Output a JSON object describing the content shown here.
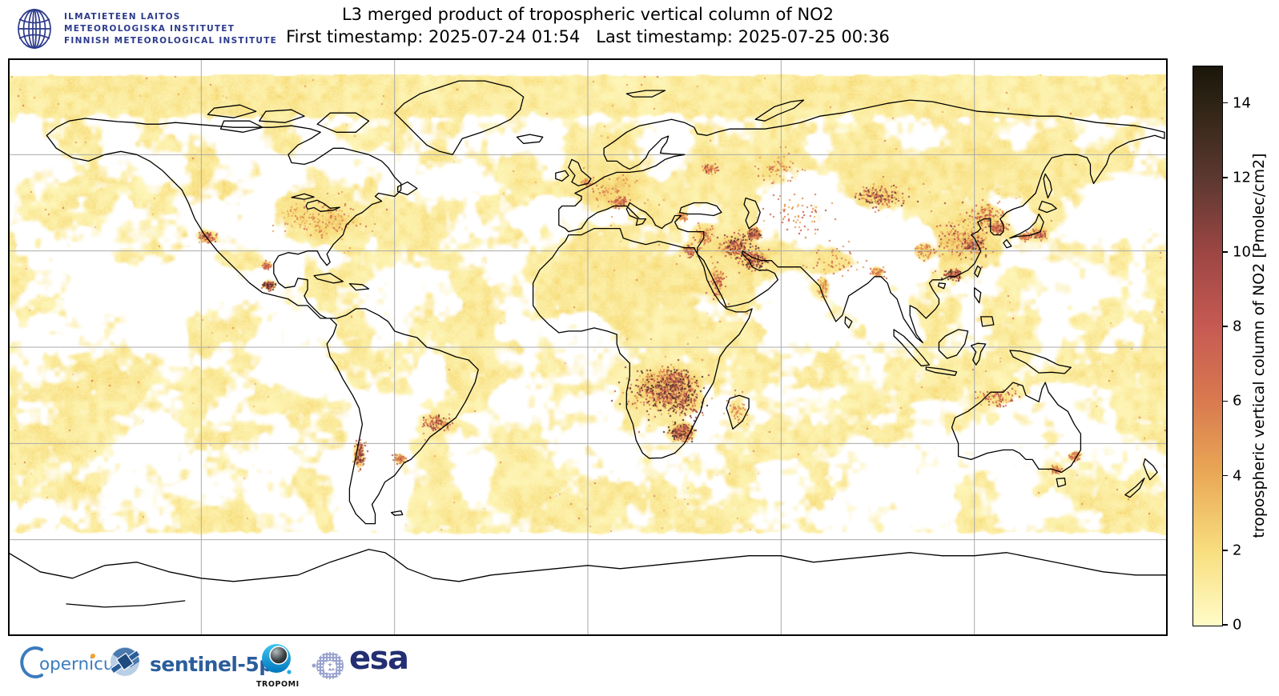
{
  "header": {
    "institute_lines": [
      "ILMATIETEEN LAITOS",
      "METEOROLOGISKA INSTITUTET",
      "FINNISH METEOROLOGICAL INSTITUTE"
    ],
    "institute_color": "#2c3a8c",
    "title": "L3 merged product of tropospheric vertical column of NO2",
    "subtitle": "First timestamp: 2025-07-24 01:54   Last timestamp: 2025-07-25 00:36",
    "first_timestamp": "2025-07-24 01:54",
    "last_timestamp": "2025-07-25 00:36"
  },
  "chart_data": {
    "type": "heatmap",
    "title": "L3 merged product of tropospheric vertical column of NO2",
    "projection": "equirectangular",
    "lon_range": [
      -180,
      180
    ],
    "lat_range": [
      -90,
      90
    ],
    "no_data_color": "#ffffff",
    "coastline_color": "#000000",
    "grid": {
      "lon_lines": [
        -120,
        -60,
        0,
        60,
        120
      ],
      "lat_lines": [
        60,
        30,
        0,
        -30,
        -60
      ],
      "color": "#aaaaaa"
    },
    "colorbar": {
      "label": "tropospheric vertical column of NO2 [Pmolec/cm2]",
      "units": "Pmolec/cm2",
      "min": 0,
      "max": 15,
      "ticks": [
        0,
        2,
        4,
        6,
        8,
        10,
        12,
        14
      ],
      "stops": [
        {
          "value": 0,
          "color": "#fffcc8"
        },
        {
          "value": 2,
          "color": "#f8de7e"
        },
        {
          "value": 4,
          "color": "#eaaa56"
        },
        {
          "value": 6,
          "color": "#d97a4f"
        },
        {
          "value": 8,
          "color": "#c75a52"
        },
        {
          "value": 10,
          "color": "#9d4644"
        },
        {
          "value": 12,
          "color": "#5c3830"
        },
        {
          "value": 14,
          "color": "#2e2415"
        },
        {
          "value": 15,
          "color": "#1a160a"
        }
      ]
    },
    "hotspots": [
      {
        "name": "eastern-us",
        "lon": -80,
        "lat": 39,
        "sx": 7,
        "sy": 4,
        "amp": 0.9,
        "speckle": 0.4
      },
      {
        "name": "us-midwest",
        "lon": -92,
        "lat": 41,
        "sx": 5,
        "sy": 3,
        "amp": 0.55,
        "speckle": 0.2
      },
      {
        "name": "los-angeles",
        "lon": -118.5,
        "lat": 34.5,
        "sx": 1.5,
        "sy": 1,
        "amp": 1.6,
        "speckle": 0.8
      },
      {
        "name": "mexico-city",
        "lon": -99,
        "lat": 19.4,
        "sx": 1,
        "sy": 0.8,
        "amp": 2.2,
        "speckle": 1
      },
      {
        "name": "monterrey",
        "lon": -100,
        "lat": 25.7,
        "sx": 0.8,
        "sy": 0.6,
        "amp": 1.4,
        "speckle": 0.5
      },
      {
        "name": "sao-paulo",
        "lon": -47,
        "lat": -23.5,
        "sx": 2.5,
        "sy": 1.5,
        "amp": 1.5,
        "speckle": 0.8
      },
      {
        "name": "buenos-aires",
        "lon": -58.5,
        "lat": -34.6,
        "sx": 1,
        "sy": 0.8,
        "amp": 1.2,
        "speckle": 0.5
      },
      {
        "name": "central-chile",
        "lon": -71,
        "lat": -33.5,
        "sx": 1,
        "sy": 2.5,
        "amp": 1.5,
        "speckle": 0.9
      },
      {
        "name": "western-europe",
        "lon": 7,
        "lat": 50,
        "sx": 6,
        "sy": 3.5,
        "amp": 0.8,
        "speckle": 0.3
      },
      {
        "name": "po-valley",
        "lon": 9.5,
        "lat": 45.3,
        "sx": 1.8,
        "sy": 0.9,
        "amp": 1.6,
        "speckle": 0.6
      },
      {
        "name": "london",
        "lon": -0.5,
        "lat": 51.5,
        "sx": 1,
        "sy": 0.7,
        "amp": 1,
        "speckle": 0.3
      },
      {
        "name": "moscow",
        "lon": 37.6,
        "lat": 55.8,
        "sx": 1.2,
        "sy": 0.9,
        "amp": 1.5,
        "speckle": 0.6
      },
      {
        "name": "istanbul",
        "lon": 29,
        "lat": 41,
        "sx": 1,
        "sy": 0.7,
        "amp": 1.3,
        "speckle": 0.4
      },
      {
        "name": "cairo",
        "lon": 31.5,
        "lat": 30.3,
        "sx": 1.2,
        "sy": 1,
        "amp": 1.8,
        "speckle": 0.7
      },
      {
        "name": "levant",
        "lon": 36,
        "lat": 35,
        "sx": 2,
        "sy": 2,
        "amp": 1.3,
        "speckle": 0.5
      },
      {
        "name": "iraq-kuwait",
        "lon": 45.5,
        "lat": 31.5,
        "sx": 3,
        "sy": 2.5,
        "amp": 2,
        "speckle": 1.2
      },
      {
        "name": "persian-gulf",
        "lon": 51,
        "lat": 27.5,
        "sx": 3,
        "sy": 2,
        "amp": 1.8,
        "speckle": 1
      },
      {
        "name": "tehran",
        "lon": 51.4,
        "lat": 35.7,
        "sx": 1.2,
        "sy": 0.9,
        "amp": 2.2,
        "speckle": 1
      },
      {
        "name": "red-sea-coast",
        "lon": 40,
        "lat": 21,
        "sx": 1.5,
        "sy": 3,
        "amp": 1.2,
        "speckle": 0.6
      },
      {
        "name": "central-asia",
        "lon": 65,
        "lat": 41,
        "sx": 6,
        "sy": 4,
        "amp": 0.5,
        "speckle": 0.5
      },
      {
        "name": "urals",
        "lon": 60,
        "lat": 56,
        "sx": 4,
        "sy": 3,
        "amp": 0.7,
        "speckle": 0.4
      },
      {
        "name": "siberia-fires",
        "lon": 90,
        "lat": 47,
        "sx": 5,
        "sy": 2.5,
        "amp": 1.1,
        "speckle": 0.9
      },
      {
        "name": "northern-india",
        "lon": 77,
        "lat": 27,
        "sx": 5,
        "sy": 3,
        "amp": 0.7,
        "speckle": 0.4
      },
      {
        "name": "mumbai",
        "lon": 73,
        "lat": 19,
        "sx": 1,
        "sy": 2,
        "amp": 0.8,
        "speckle": 0.3
      },
      {
        "name": "bangladesh",
        "lon": 90,
        "lat": 23.7,
        "sx": 1.5,
        "sy": 1,
        "amp": 1,
        "speckle": 0.4
      },
      {
        "name": "east-china",
        "lon": 116,
        "lat": 34,
        "sx": 6,
        "sy": 5,
        "amp": 1.3,
        "speckle": 0.7
      },
      {
        "name": "yangtze-delta",
        "lon": 119.5,
        "lat": 32,
        "sx": 2,
        "sy": 1.5,
        "amp": 2,
        "speckle": 0.9
      },
      {
        "name": "pearl-river-delta",
        "lon": 113.5,
        "lat": 23,
        "sx": 1.5,
        "sy": 1,
        "amp": 2.2,
        "speckle": 1
      },
      {
        "name": "sichuan",
        "lon": 104,
        "lat": 30,
        "sx": 2,
        "sy": 1.5,
        "amp": 1,
        "speckle": 0.4
      },
      {
        "name": "seoul",
        "lon": 127,
        "lat": 37.3,
        "sx": 1.5,
        "sy": 1,
        "amp": 1.8,
        "speckle": 0.8
      },
      {
        "name": "tokyo",
        "lon": 139.8,
        "lat": 35.6,
        "sx": 1.5,
        "sy": 1,
        "amp": 1.5,
        "speckle": 0.7
      },
      {
        "name": "osaka",
        "lon": 135.5,
        "lat": 34.6,
        "sx": 1,
        "sy": 0.7,
        "amp": 1.3,
        "speckle": 0.5
      },
      {
        "name": "northeast-china",
        "lon": 123.5,
        "lat": 41.5,
        "sx": 3,
        "sy": 2,
        "amp": 1.2,
        "speckle": 0.6
      },
      {
        "name": "angola-zambia-fires",
        "lon": 22,
        "lat": -13.5,
        "sx": 6,
        "sy": 4,
        "amp": 1.8,
        "speckle": 2.2
      },
      {
        "name": "drc-fires",
        "lon": 27,
        "lat": -11,
        "sx": 4,
        "sy": 3,
        "amp": 1.4,
        "speckle": 1.5
      },
      {
        "name": "zambezi-fires",
        "lon": 29,
        "lat": -17,
        "sx": 4,
        "sy": 3,
        "amp": 1,
        "speckle": 1
      },
      {
        "name": "south-africa-highveld",
        "lon": 29,
        "lat": -26.3,
        "sx": 2,
        "sy": 1.5,
        "amp": 2.5,
        "speckle": 1.8
      },
      {
        "name": "madagascar-west",
        "lon": 46,
        "lat": -19,
        "sx": 2,
        "sy": 3,
        "amp": 0.6,
        "speckle": 0.3
      },
      {
        "name": "sydney",
        "lon": 151,
        "lat": -33.8,
        "sx": 1,
        "sy": 0.8,
        "amp": 1.2,
        "speckle": 0.5
      },
      {
        "name": "melbourne",
        "lon": 145,
        "lat": -37.8,
        "sx": 1,
        "sy": 0.7,
        "amp": 1.2,
        "speckle": 0.5
      },
      {
        "name": "north-australia-fires",
        "lon": 127,
        "lat": -15.5,
        "sx": 4,
        "sy": 2,
        "amp": 0.7,
        "speckle": 0.6
      },
      {
        "name": "eurasia-wash",
        "lon": 60,
        "lat": 52,
        "sx": 40,
        "sy": 10,
        "amp": 0.3,
        "speckle": 0
      },
      {
        "name": "north-america-wash",
        "lon": -95,
        "lat": 42,
        "sx": 18,
        "sy": 8,
        "amp": 0.28,
        "speckle": 0
      },
      {
        "name": "sahara-wash",
        "lon": 10,
        "lat": 22,
        "sx": 20,
        "sy": 10,
        "amp": 0.3,
        "speckle": 0
      },
      {
        "name": "east-siberia-wash",
        "lon": 120,
        "lat": 58,
        "sx": 25,
        "sy": 8,
        "amp": 0.28,
        "speckle": 0
      }
    ],
    "low_coverage_regions": [
      {
        "name": "central-us",
        "lon": -100,
        "lat": 41,
        "sx": 8,
        "sy": 5,
        "depth": 0.5
      },
      {
        "name": "north-atlantic",
        "lon": -45,
        "lat": 52,
        "sx": 8,
        "sy": 4,
        "depth": 0.45
      },
      {
        "name": "central-asia",
        "lon": 70,
        "lat": 45,
        "sx": 12,
        "sy": 7,
        "depth": 0.55
      },
      {
        "name": "tibet",
        "lon": 85,
        "lat": 32,
        "sx": 8,
        "sy": 4,
        "depth": 0.5
      },
      {
        "name": "central-india",
        "lon": 78,
        "lat": 21,
        "sx": 6,
        "sy": 4,
        "depth": 0.4
      },
      {
        "name": "gran-chaco",
        "lon": -65,
        "lat": -25,
        "sx": 6,
        "sy": 5,
        "depth": 0.4
      },
      {
        "name": "patagonia",
        "lon": -72,
        "lat": -45,
        "sx": 5,
        "sy": 7,
        "depth": 0.5
      },
      {
        "name": "eastern-europe",
        "lon": 22,
        "lat": 55,
        "sx": 8,
        "sy": 4,
        "depth": 0.35
      },
      {
        "name": "central-china",
        "lon": 105,
        "lat": 35,
        "sx": 5,
        "sy": 3,
        "depth": 0.35
      },
      {
        "name": "nw-pacific",
        "lon": 165,
        "lat": 44,
        "sx": 10,
        "sy": 5,
        "depth": 0.4
      },
      {
        "name": "east-pacific",
        "lon": -135,
        "lat": 15,
        "sx": 12,
        "sy": 6,
        "depth": 0.35
      },
      {
        "name": "arabian-sea",
        "lon": 65,
        "lat": 10,
        "sx": 8,
        "sy": 5,
        "depth": 0.35
      }
    ]
  },
  "footer": {
    "copernicus": {
      "label": "opernicus",
      "color": "#3a7cbe",
      "dot_color": "#f0a22e"
    },
    "sentinel": {
      "label": "sentinel-5p",
      "color": "#2b5d9b"
    },
    "tropomi": {
      "label": "TROPOMI",
      "color_top": "#3fc6f0",
      "color_bottom": "#0077be"
    },
    "esa": {
      "label": "esa",
      "color": "#232f72",
      "globe_color": "#99a3ce"
    }
  }
}
